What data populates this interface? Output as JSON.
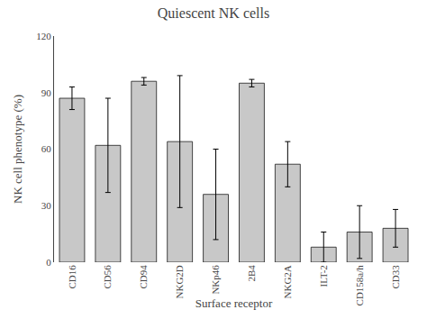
{
  "chart_data": {
    "type": "bar",
    "title": "Quiescent NK cells",
    "xlabel": "Surface receptor",
    "ylabel": "NK cell phenotype (%)",
    "categories": [
      "CD16",
      "CD56",
      "CD94",
      "NKG2D",
      "NKp46",
      "2B4",
      "NKG2A",
      "ILT-2",
      "CD158a/h",
      "CD33"
    ],
    "values": [
      87,
      62,
      96,
      64,
      36,
      95,
      52,
      8,
      16,
      18
    ],
    "errors": [
      6,
      25,
      2,
      35,
      24,
      2,
      12,
      8,
      14,
      10
    ],
    "color": "#c8c8c8",
    "ylim": [
      0,
      120
    ],
    "yticks": [
      0,
      30,
      60,
      90,
      120
    ],
    "grid": false
  }
}
